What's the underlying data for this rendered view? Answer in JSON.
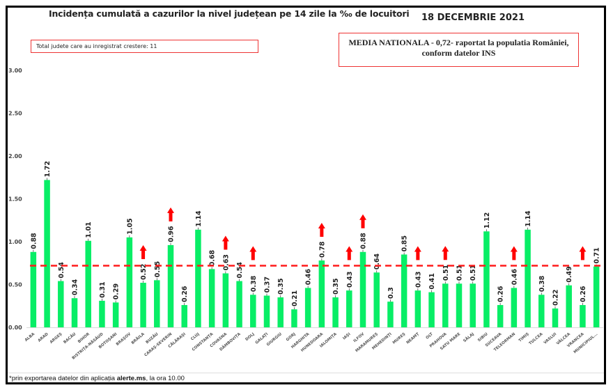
{
  "header": {
    "title": "Incidența cumulată a cazurilor la nivel județean pe 14 zile la ‰ de locuitori",
    "date": "18 DECEMBRIE 2021"
  },
  "info_boxes": {
    "increase_count_label": "Total judete care au inregistrat crestere: 11",
    "national_average_line1": "MEDIA NATIONALA - 0,72-  raportat la populatia României,",
    "national_average_line2": "conform datelor INS"
  },
  "footer": {
    "prefix": "*prin exportarea datelor din aplicația ",
    "source": "alerte.ms",
    "suffix": ", la ora 10.00"
  },
  "colors": {
    "bar": "#08ee66",
    "average_line": "#ff1a1a",
    "arrow": "#ff0000",
    "box_border": "#ee3333"
  },
  "chart_data": {
    "type": "bar",
    "title": "Incidența cumulată a cazurilor la nivel județean pe 14 zile la ‰ de locuitori",
    "xlabel": "",
    "ylabel": "",
    "ylim": [
      0,
      3
    ],
    "yticks": [
      "0.00",
      "0.50",
      "1.00",
      "1.50",
      "2.00",
      "2.50",
      "3.00"
    ],
    "grid": false,
    "average_line": {
      "value": 0.72,
      "label": "MEDIA NATIONALA - 0,72"
    },
    "categories": [
      "ALBA",
      "ARAD",
      "ARGEȘ",
      "BACĂU",
      "BIHOR",
      "BISTRIȚA-NĂSĂUD",
      "BOTOȘANI",
      "BRAȘOV",
      "BRĂILA",
      "BUZĂU",
      "CARAȘ-SEVERIN",
      "CĂLĂRAȘI",
      "CLUJ",
      "CONSTANȚA",
      "COVASNA",
      "DÂMBOVIȚA",
      "DOLJ",
      "GALAȚI",
      "GIURGIU",
      "GORJ",
      "HARGHITA",
      "HUNEDOARA",
      "IALOMIȚA",
      "IAȘI",
      "ILFOV",
      "MARAMUREȘ",
      "MEHEDINȚI",
      "MUREȘ",
      "NEAMȚ",
      "OLT",
      "PRAHOVA",
      "SATU MARE",
      "SĂLAJ",
      "SIBIU",
      "SUCEAVA",
      "TELEORMAN",
      "TIMIȘ",
      "TULCEA",
      "VASLUI",
      "VÂLCEA",
      "VRANCEA",
      "MUNICIPIUL..."
    ],
    "values": [
      0.88,
      1.72,
      0.54,
      0.34,
      1.01,
      0.31,
      0.29,
      1.05,
      0.52,
      0.55,
      0.96,
      0.26,
      1.14,
      0.68,
      0.63,
      0.54,
      0.38,
      0.37,
      0.35,
      0.21,
      0.46,
      0.78,
      0.35,
      0.43,
      0.88,
      0.64,
      0.3,
      0.85,
      0.43,
      0.41,
      0.51,
      0.51,
      0.51,
      1.12,
      0.26,
      0.46,
      1.14,
      0.38,
      0.22,
      0.49,
      0.26,
      0.71
    ],
    "value_labels": [
      "0.88",
      "1.72",
      "0.54",
      "0.34",
      "1.01",
      "0.31",
      "0.29",
      "1.05",
      "0.52",
      "0.55",
      "0.96",
      "0.26",
      "1.14",
      "0.68",
      "0.63",
      "0.54",
      "0.38",
      "0.37",
      "0.35",
      "0.21",
      "0.46",
      "0.78",
      "0.35",
      "0.43",
      "0.88",
      "0.64",
      "0.3",
      "0.85",
      "0.43",
      "0.41",
      "0.51",
      "0.51",
      "0.51",
      "1.12",
      "0.26",
      "0.46",
      "1.14",
      "0.38",
      "0.22",
      "0.49",
      "0.26",
      "0.71"
    ],
    "increase_markers": [
      "BRĂILA",
      "CARAȘ-SEVERIN",
      "COVASNA",
      "DOLJ",
      "HUNEDOARA",
      "IAȘI",
      "ILFOV",
      "NEAMȚ",
      "PRAHOVA",
      "TELEORMAN",
      "VRANCEA"
    ]
  }
}
